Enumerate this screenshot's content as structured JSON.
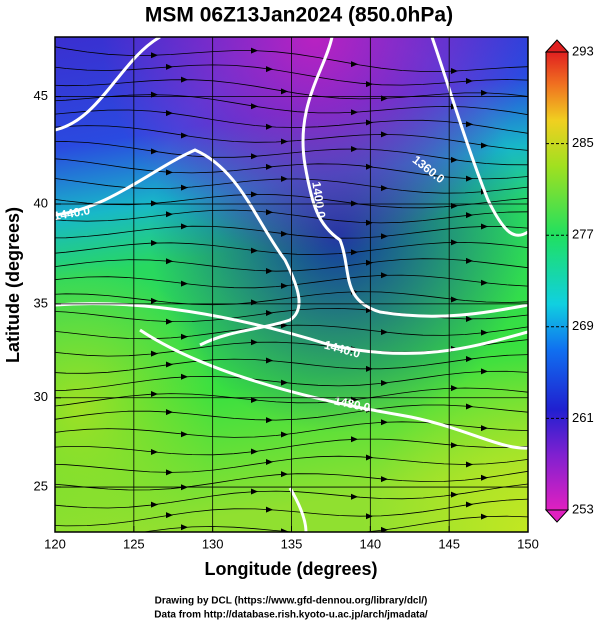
{
  "chart_data": {
    "type": "map",
    "title": "MSM 06Z13Jan2024 (850.0hPa)",
    "x_label": "Longitude (degrees)",
    "y_label": "Latitude  (degrees)",
    "projection": "mercator",
    "xlim": [
      120,
      150
    ],
    "xticks": [
      120,
      125,
      130,
      135,
      140,
      145,
      150
    ],
    "ylim": [
      22.4,
      47.6
    ],
    "yticks": [
      25,
      30,
      35,
      40,
      45
    ],
    "grid": true,
    "colorbar": {
      "lim": [
        253,
        293
      ],
      "ticks": [
        253,
        261,
        269,
        277,
        285,
        293
      ]
    },
    "contour_labels": [
      "1400.0",
      "1360.0",
      "1440.0",
      "1440.0",
      "1480.0"
    ]
  },
  "footer": [
    "Drawing by DCL (https://www.gfd-dennou.org/library/dcl/)",
    "Data from http://database.rish.kyoto-u.ac.jp/arch/jmadata/"
  ]
}
